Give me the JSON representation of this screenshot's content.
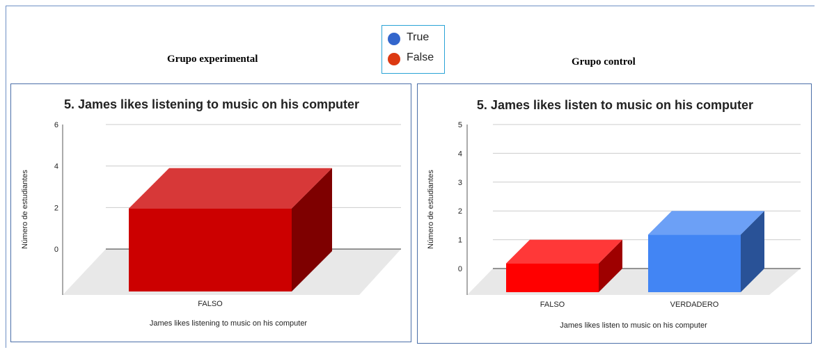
{
  "group_titles": {
    "experimental": "Grupo experimental",
    "control": "Grupo control"
  },
  "legend": [
    {
      "label": "True",
      "color": "#3366cc"
    },
    {
      "label": "False",
      "color": "#dc3912"
    }
  ],
  "chart_data": [
    {
      "type": "bar",
      "title": "5. James likes listening to music on his computer",
      "xlabel": "James likes listening to music on his computer",
      "ylabel": "Número de estudiantes",
      "categories": [
        "FALSO"
      ],
      "values": [
        4
      ],
      "bar_colors": [
        "#cc0000"
      ],
      "ylim": [
        0,
        6
      ],
      "yticks": [
        0,
        2,
        4,
        6
      ],
      "grid": true,
      "style": "3d"
    },
    {
      "type": "bar",
      "title": "5. James likes listen to music on his computer",
      "xlabel": "James likes listen to music on his computer",
      "ylabel": "Número de estudiantes",
      "categories": [
        "FALSO",
        "VERDADERO"
      ],
      "values": [
        1,
        2
      ],
      "bar_colors": [
        "#ff0000",
        "#4285f4"
      ],
      "ylim": [
        0,
        5
      ],
      "yticks": [
        0,
        1,
        2,
        3,
        4,
        5
      ],
      "grid": true,
      "style": "3d"
    }
  ]
}
